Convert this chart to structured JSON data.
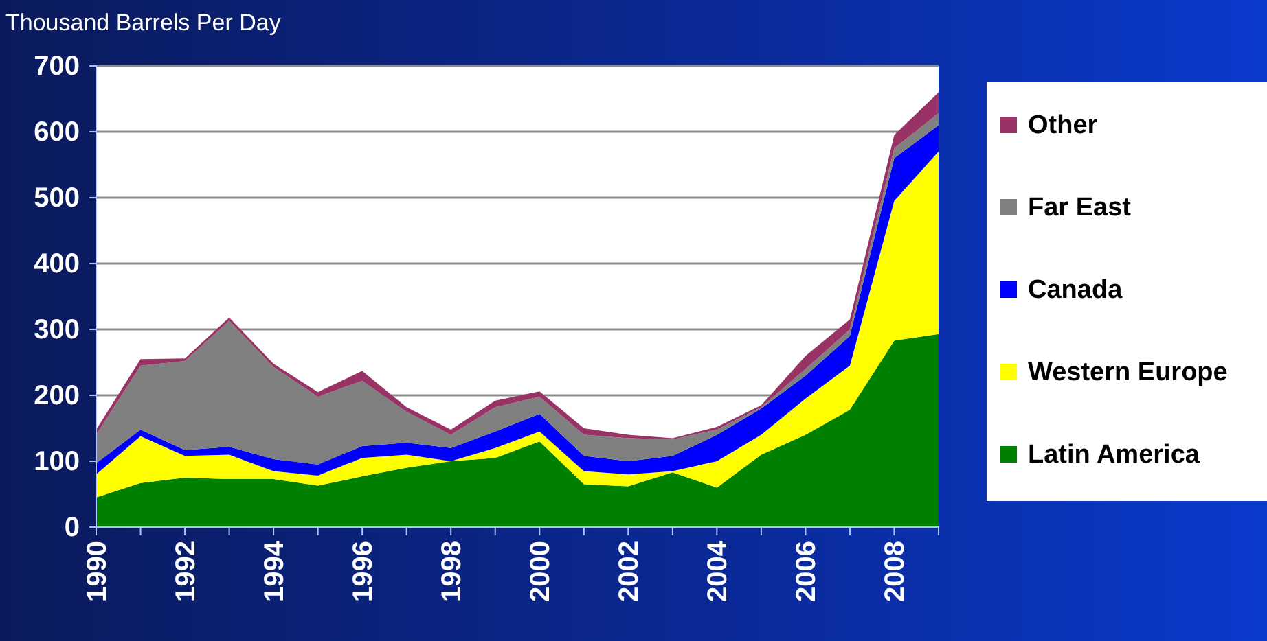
{
  "chart_data": {
    "type": "area",
    "stacked": true,
    "ylabel": "Thousand Barrels Per Day",
    "x": [
      1990,
      1991,
      1992,
      1993,
      1994,
      1995,
      1996,
      1997,
      1998,
      1999,
      2000,
      2001,
      2002,
      2003,
      2004,
      2005,
      2006,
      2007,
      2008,
      2009
    ],
    "series": [
      {
        "name": "Latin America",
        "color": "#008000",
        "values": [
          45,
          67,
          75,
          73,
          73,
          63,
          77,
          90,
          100,
          105,
          130,
          65,
          62,
          83,
          60,
          110,
          140,
          178,
          283,
          293
        ]
      },
      {
        "name": "Western Europe",
        "color": "#ffff00",
        "values": [
          35,
          71,
          33,
          37,
          12,
          15,
          28,
          20,
          0,
          15,
          15,
          20,
          18,
          2,
          40,
          30,
          55,
          67,
          212,
          277
        ]
      },
      {
        "name": "Canada",
        "color": "#0000ff",
        "values": [
          17,
          10,
          9,
          12,
          18,
          17,
          18,
          18,
          20,
          25,
          27,
          23,
          20,
          23,
          40,
          40,
          35,
          45,
          65,
          40
        ]
      },
      {
        "name": "Far East",
        "color": "#808080",
        "values": [
          43,
          97,
          135,
          191,
          140,
          103,
          99,
          47,
          20,
          37,
          26,
          32,
          35,
          25,
          8,
          2,
          10,
          10,
          15,
          18
        ]
      },
      {
        "name": "Other",
        "color": "#993366",
        "values": [
          8,
          10,
          4,
          5,
          5,
          7,
          15,
          7,
          8,
          10,
          8,
          10,
          5,
          2,
          4,
          3,
          20,
          15,
          20,
          32
        ]
      }
    ],
    "xlim": [
      1990,
      2009
    ],
    "xticks": [
      1990,
      {
        "value": 1991,
        "label": null
      },
      1992,
      {
        "value": 1993,
        "label": null
      },
      1994,
      {
        "value": 1995,
        "label": null
      },
      1996,
      {
        "value": 1997,
        "label": null
      },
      1998,
      {
        "value": 1999,
        "label": null
      },
      2000,
      {
        "value": 2001,
        "label": null
      },
      2002,
      {
        "value": 2003,
        "label": null
      },
      2004,
      {
        "value": 2005,
        "label": null
      },
      2006,
      {
        "value": 2007,
        "label": null
      },
      2008,
      {
        "value": 2009,
        "label": null
      }
    ],
    "ylim": [
      0,
      700
    ],
    "yticks": [
      0,
      100,
      200,
      300,
      400,
      500,
      600,
      700
    ],
    "grid": "y",
    "legend": "right"
  }
}
